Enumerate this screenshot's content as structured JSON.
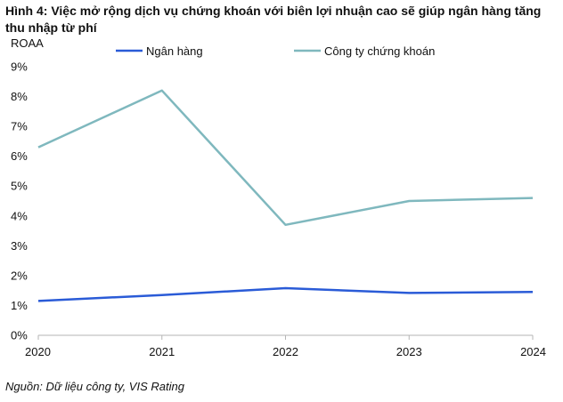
{
  "figure": {
    "title": "Hình 4: Việc mở rộng dịch vụ chứng khoán với biên lợi nhuận cao sẽ giúp ngân hàng tăng thu nhập từ phí",
    "source": "Nguồn: Dữ liệu công ty, VIS Rating"
  },
  "chart_data": {
    "type": "line",
    "title": "",
    "xlabel": "",
    "ylabel": "ROAA",
    "x": [
      "2020",
      "2021",
      "2022",
      "2023",
      "2024"
    ],
    "ylim": [
      0,
      9
    ],
    "yticks": [
      "0%",
      "1%",
      "2%",
      "3%",
      "4%",
      "5%",
      "6%",
      "7%",
      "8%",
      "9%"
    ],
    "grid": false,
    "legend_position": "top",
    "series": [
      {
        "name": "Ngân hàng",
        "color": "#2a5bd7",
        "values": [
          1.15,
          1.35,
          1.58,
          1.42,
          1.45
        ]
      },
      {
        "name": "Công ty chứng khoán",
        "color": "#7fb8be",
        "values": [
          6.3,
          8.2,
          3.7,
          4.5,
          4.6
        ]
      }
    ]
  }
}
